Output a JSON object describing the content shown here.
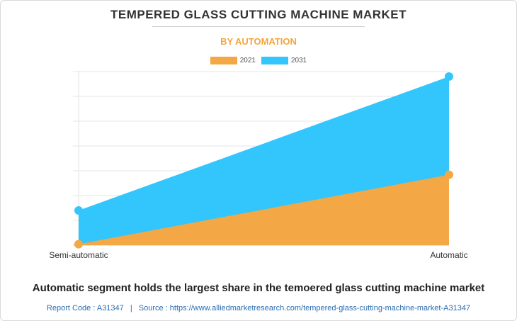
{
  "page": {
    "title": "TEMPERED GLASS CUTTING MACHINE MARKET",
    "subtitle": "BY AUTOMATION",
    "caption": "Automatic segment holds the largest share in the temoered glass cutting machine market",
    "footer": {
      "report_code": "Report Code : A31347",
      "separator": "|",
      "source": "Source : https://www.alliedmarketresearch.com/tempered-glass-cutting-machine-market-A31347"
    }
  },
  "colors": {
    "title": "#333333",
    "subtitle": "#f4a53a",
    "series_2021": "#f4a745",
    "series_2031": "#33c6fd",
    "grid": "#e6e6e6",
    "footer": "#2a6db0"
  },
  "chart_data": {
    "type": "area",
    "title": "TEMPERED GLASS CUTTING MACHINE MARKET",
    "subtitle": "BY AUTOMATION",
    "categories": [
      "Semi-automatic",
      "Automatic"
    ],
    "series": [
      {
        "name": "2021",
        "values": [
          0.2,
          14.2
        ]
      },
      {
        "name": "2031",
        "values": [
          7.0,
          34.0
        ]
      }
    ],
    "ylim": [
      0,
      35
    ],
    "grid": true,
    "y_tick_labels_shown": false,
    "legend_position": "top-center",
    "xlabel": "",
    "ylabel": ""
  }
}
